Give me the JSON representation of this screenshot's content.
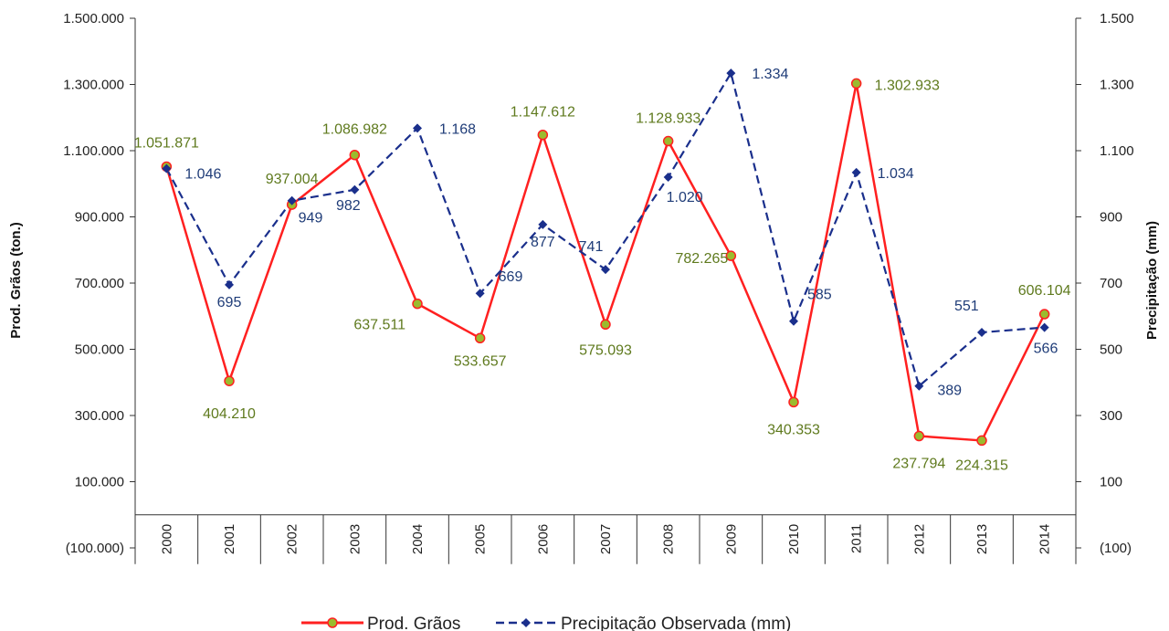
{
  "chart_data": {
    "type": "line",
    "x": [
      "2000",
      "2001",
      "2002",
      "2003",
      "2004",
      "2005",
      "2006",
      "2007",
      "2008",
      "2009",
      "2010",
      "2011",
      "2012",
      "2013",
      "2014"
    ],
    "ylabel": "Prod. Grãos (ton.)",
    "y2label": "Precipitação (mm)",
    "ylim": [
      -100000,
      1500000
    ],
    "y2lim": [
      -100,
      1500
    ],
    "yticks": [
      {
        "value": -100000,
        "label": "(100.000)"
      },
      {
        "value": 100000,
        "label": "100.000"
      },
      {
        "value": 300000,
        "label": "300.000"
      },
      {
        "value": 500000,
        "label": "500.000"
      },
      {
        "value": 700000,
        "label": "700.000"
      },
      {
        "value": 900000,
        "label": "900.000"
      },
      {
        "value": 1100000,
        "label": "1.100.000"
      },
      {
        "value": 1300000,
        "label": "1.300.000"
      },
      {
        "value": 1500000,
        "label": "1.500.000"
      }
    ],
    "y2ticks": [
      {
        "value": -100,
        "label": "(100)"
      },
      {
        "value": 100,
        "label": "100"
      },
      {
        "value": 300,
        "label": "300"
      },
      {
        "value": 500,
        "label": "500"
      },
      {
        "value": 700,
        "label": "700"
      },
      {
        "value": 900,
        "label": "900"
      },
      {
        "value": 1100,
        "label": "1.100"
      },
      {
        "value": 1300,
        "label": "1.300"
      },
      {
        "value": 1500,
        "label": "1.500"
      }
    ],
    "grid": false,
    "legend_position": "bottom",
    "series": [
      {
        "name": "Prod. Grãos",
        "axis": "left",
        "color": "#ff2020",
        "marker_fill": "#9bbb2e",
        "label_color": "#5f7a1e",
        "values": [
          1051871,
          404210,
          937004,
          1086982,
          637511,
          533657,
          1147612,
          575093,
          1128933,
          782265,
          340353,
          1302933,
          237794,
          224315,
          606104
        ],
        "labels": [
          "1.051.871",
          "404.210",
          "937.004",
          "1.086.982",
          "637.511",
          "533.657",
          "1.147.612",
          "575.093",
          "1.128.933",
          "782.265",
          "340.353",
          "1.302.933",
          "237.794",
          "224.315",
          "606.104"
        ]
      },
      {
        "name": "Precipitação Observada (mm)",
        "axis": "right",
        "color": "#1a2f8c",
        "label_color": "#1f3c78",
        "values": [
          1046,
          695,
          949,
          982,
          1168,
          669,
          877,
          741,
          1020,
          1334,
          585,
          1034,
          389,
          551,
          566
        ],
        "labels": [
          "1.046",
          "695",
          "949",
          "982",
          "1.168",
          "669",
          "877",
          "741",
          "1.020",
          "1.334",
          "585",
          "1.034",
          "389",
          "551",
          "566"
        ]
      }
    ]
  }
}
